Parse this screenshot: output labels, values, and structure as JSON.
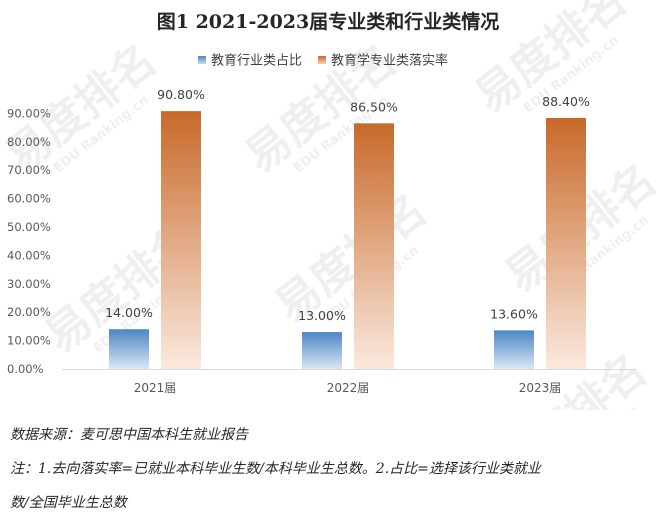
{
  "chart_data": {
    "type": "bar",
    "title": "图1 2021-2023届专业类和行业类情况",
    "categories": [
      "2021届",
      "2022届",
      "2023届"
    ],
    "series": [
      {
        "name": "教育行业类占比",
        "values": [
          14.0,
          13.0,
          13.6
        ],
        "labels": [
          "14.00%",
          "13.00%",
          "13.60%"
        ],
        "color": "#4a86c5"
      },
      {
        "name": "教育学专业类落实率",
        "values": [
          90.8,
          86.5,
          88.4
        ],
        "labels": [
          "90.80%",
          "86.50%",
          "88.40%"
        ],
        "color": "#c8692a"
      }
    ],
    "ylim": [
      0,
      100
    ],
    "yticks": [
      "0.00%",
      "10.00%",
      "20.00%",
      "30.00%",
      "40.00%",
      "50.00%",
      "60.00%",
      "70.00%",
      "80.00%",
      "90.00%"
    ],
    "grid": false,
    "legend_position": "top-center"
  },
  "watermark": {
    "brand": "易度排名",
    "brand_en": "EDU Ranking.cn"
  },
  "notes": {
    "source": "数据来源：麦可思中国本科生就业报告",
    "note_line1": "注：1.去向落实率=已就业本科毕业生数/本科毕业生总数。2.占比=选择该行业类就业",
    "note_line2": "数/全国毕业生总数"
  }
}
